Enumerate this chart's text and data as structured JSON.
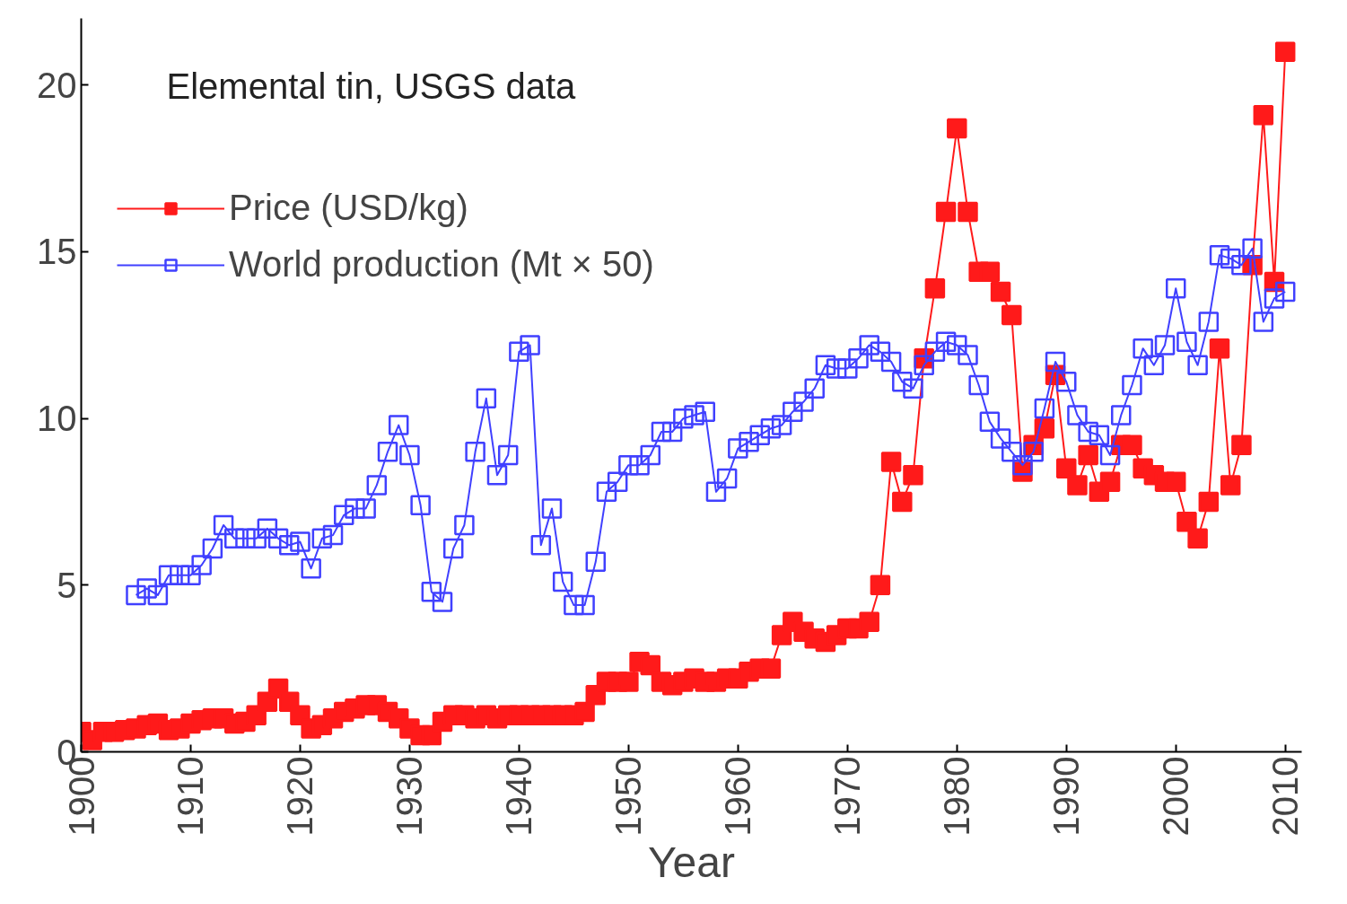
{
  "chart_data": {
    "type": "line",
    "title": "Elemental tin, USGS data",
    "xlabel": "Year",
    "xlim": [
      1900,
      2011.5
    ],
    "ylim": [
      0,
      22
    ],
    "xticks": [
      1900,
      1910,
      1920,
      1930,
      1940,
      1950,
      1960,
      1970,
      1980,
      1990,
      2000,
      2010
    ],
    "yticks": [
      0,
      5,
      10,
      15,
      20
    ],
    "grid": false,
    "legend": "top left",
    "marker": "square",
    "line_style": "solid",
    "series": [
      {
        "name": "Price (USD/kg)",
        "color": "#ff1a1a",
        "x": [
          1900,
          1901,
          1902,
          1903,
          1904,
          1905,
          1906,
          1907,
          1908,
          1909,
          1910,
          1911,
          1912,
          1913,
          1914,
          1915,
          1916,
          1917,
          1918,
          1919,
          1920,
          1921,
          1922,
          1923,
          1924,
          1925,
          1926,
          1927,
          1928,
          1929,
          1930,
          1931,
          1932,
          1933,
          1934,
          1935,
          1936,
          1937,
          1938,
          1939,
          1940,
          1941,
          1942,
          1943,
          1944,
          1945,
          1946,
          1947,
          1948,
          1949,
          1950,
          1951,
          1952,
          1953,
          1954,
          1955,
          1956,
          1957,
          1958,
          1959,
          1960,
          1961,
          1962,
          1963,
          1964,
          1965,
          1966,
          1967,
          1968,
          1969,
          1970,
          1971,
          1972,
          1973,
          1974,
          1975,
          1976,
          1977,
          1978,
          1979,
          1980,
          1981,
          1982,
          1983,
          1984,
          1985,
          1986,
          1987,
          1988,
          1989,
          1990,
          1991,
          1992,
          1993,
          1994,
          1995,
          1996,
          1997,
          1998,
          1999,
          2000,
          2001,
          2002,
          2003,
          2004,
          2005,
          2006,
          2007,
          2008,
          2009,
          2010
        ],
        "values": [
          0.6,
          0.35,
          0.6,
          0.6,
          0.65,
          0.7,
          0.8,
          0.85,
          0.65,
          0.7,
          0.85,
          0.95,
          1.0,
          1.0,
          0.85,
          0.9,
          1.1,
          1.5,
          1.9,
          1.5,
          1.1,
          0.7,
          0.8,
          1.0,
          1.2,
          1.3,
          1.4,
          1.4,
          1.2,
          1.0,
          0.7,
          0.5,
          0.5,
          0.9,
          1.1,
          1.1,
          1.0,
          1.1,
          1.0,
          1.1,
          1.1,
          1.1,
          1.1,
          1.1,
          1.1,
          1.1,
          1.2,
          1.7,
          2.1,
          2.1,
          2.1,
          2.7,
          2.6,
          2.1,
          2.0,
          2.1,
          2.2,
          2.1,
          2.1,
          2.2,
          2.2,
          2.4,
          2.5,
          2.5,
          3.5,
          3.9,
          3.6,
          3.4,
          3.3,
          3.5,
          3.7,
          3.7,
          3.9,
          5.0,
          8.7,
          7.5,
          8.3,
          11.8,
          13.9,
          16.2,
          18.7,
          16.2,
          14.4,
          14.4,
          13.8,
          13.1,
          8.4,
          9.2,
          9.7,
          11.3,
          8.5,
          8.0,
          8.9,
          7.8,
          8.1,
          9.2,
          9.2,
          8.5,
          8.3,
          8.1,
          8.1,
          6.9,
          6.4,
          7.5,
          12.1,
          8.0,
          9.2,
          14.6,
          19.1,
          14.1,
          21.0
        ]
      },
      {
        "name": "World production (Mt × 50)",
        "color": "#4040ff",
        "x": [
          1905,
          1906,
          1907,
          1908,
          1909,
          1910,
          1911,
          1912,
          1913,
          1914,
          1915,
          1916,
          1917,
          1918,
          1919,
          1920,
          1921,
          1922,
          1923,
          1924,
          1925,
          1926,
          1927,
          1928,
          1929,
          1930,
          1931,
          1932,
          1933,
          1934,
          1935,
          1936,
          1937,
          1938,
          1939,
          1940,
          1941,
          1942,
          1943,
          1944,
          1945,
          1946,
          1947,
          1948,
          1949,
          1950,
          1951,
          1952,
          1953,
          1954,
          1955,
          1956,
          1957,
          1958,
          1959,
          1960,
          1961,
          1962,
          1963,
          1964,
          1965,
          1966,
          1967,
          1968,
          1969,
          1970,
          1971,
          1972,
          1973,
          1974,
          1975,
          1976,
          1977,
          1978,
          1979,
          1980,
          1981,
          1982,
          1983,
          1984,
          1985,
          1986,
          1987,
          1988,
          1989,
          1990,
          1991,
          1992,
          1993,
          1994,
          1995,
          1996,
          1997,
          1998,
          1999,
          2000,
          2001,
          2002,
          2003,
          2004,
          2005,
          2006,
          2007,
          2008,
          2009,
          2010
        ],
        "values": [
          4.7,
          4.9,
          4.7,
          5.3,
          5.3,
          5.3,
          5.6,
          6.1,
          6.8,
          6.4,
          6.4,
          6.4,
          6.7,
          6.4,
          6.2,
          6.3,
          5.5,
          6.4,
          6.5,
          7.1,
          7.3,
          7.3,
          8.0,
          9.0,
          9.8,
          8.9,
          7.4,
          4.8,
          4.5,
          6.1,
          6.8,
          9.0,
          10.6,
          8.3,
          8.9,
          12.0,
          12.2,
          6.2,
          7.3,
          5.1,
          4.4,
          4.4,
          5.7,
          7.8,
          8.1,
          8.6,
          8.6,
          8.9,
          9.6,
          9.6,
          10.0,
          10.1,
          10.2,
          7.8,
          8.2,
          9.1,
          9.3,
          9.5,
          9.7,
          9.8,
          10.2,
          10.5,
          10.9,
          11.6,
          11.5,
          11.5,
          11.8,
          12.2,
          12.0,
          11.7,
          11.1,
          10.9,
          11.6,
          12.0,
          12.3,
          12.2,
          11.9,
          11.0,
          9.9,
          9.4,
          9.0,
          8.6,
          9.0,
          10.3,
          11.7,
          11.1,
          10.1,
          9.6,
          9.5,
          8.9,
          10.1,
          11.0,
          12.1,
          11.6,
          12.2,
          13.9,
          12.3,
          11.6,
          12.9,
          14.9,
          14.8,
          14.6,
          15.1,
          12.9,
          13.6,
          13.8
        ]
      }
    ]
  }
}
